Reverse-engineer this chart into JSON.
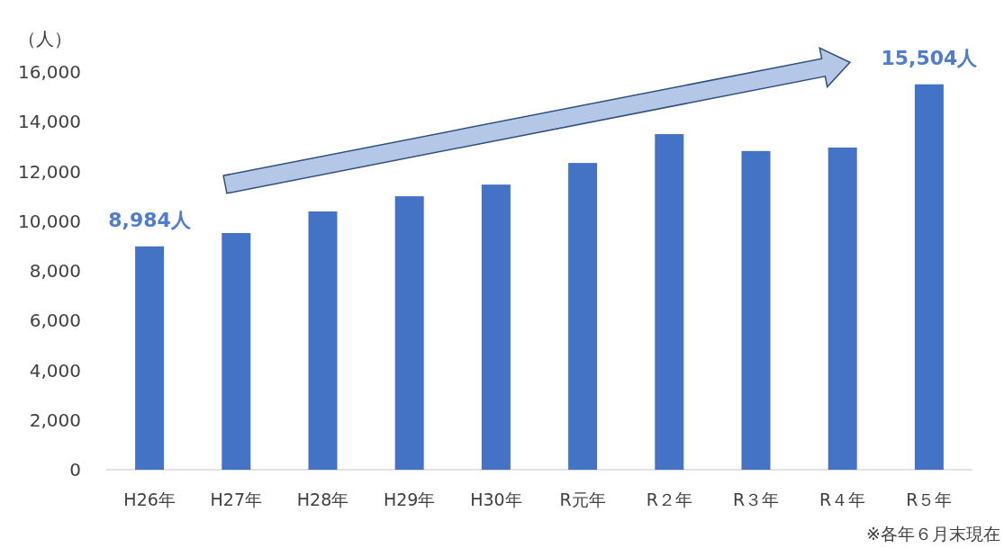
{
  "chart_data": {
    "type": "bar",
    "ylabel": "（人）",
    "categories": [
      "H26年",
      "H27年",
      "H28年",
      "H29年",
      "H30年",
      "R元年",
      "R２年",
      "R３年",
      "R４年",
      "R５年"
    ],
    "values": [
      8984,
      9520,
      10390,
      11000,
      11470,
      12340,
      13500,
      12820,
      12960,
      15504
    ],
    "value_labels": [
      "8,984人",
      null,
      null,
      null,
      null,
      null,
      null,
      null,
      null,
      "15,504人"
    ],
    "color": "#4472c4",
    "ylim": [
      0,
      16000
    ],
    "yticks": [
      0,
      {
        "value": 2000,
        "label": "2,000"
      },
      {
        "value": 4000,
        "label": "4,000"
      },
      {
        "value": 6000,
        "label": "6,000"
      },
      {
        "value": 8000,
        "label": "8,000"
      },
      {
        "value": 10000,
        "label": "10,000"
      },
      {
        "value": 12000,
        "label": "12,000"
      },
      {
        "value": 14000,
        "label": "14,000"
      },
      {
        "value": 16000,
        "label": "16,000"
      }
    ],
    "grid": false,
    "annotations": [
      "※各年６月末現在"
    ]
  }
}
